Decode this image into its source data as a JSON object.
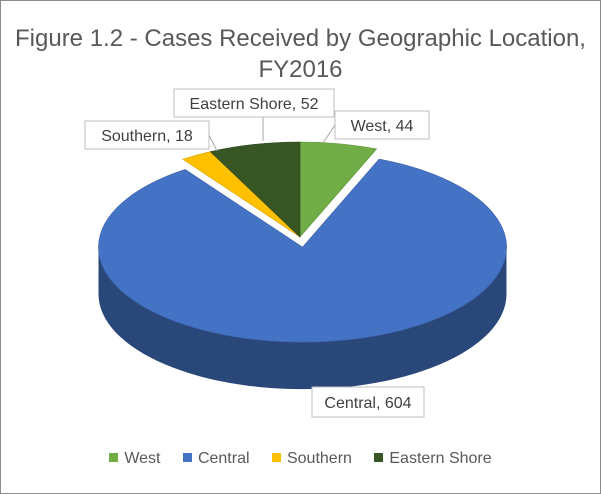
{
  "chart_data": {
    "type": "pie",
    "title": "Figure 1.2 - Cases Received by Geographic Location, FY2016",
    "title_lines": [
      "Figure 1.2 - Cases Received by Geographic Location,",
      "FY2016"
    ],
    "style": "3d",
    "slices": [
      {
        "label": "West",
        "value": 44,
        "color": "#70ad47",
        "data_label": "West, 44"
      },
      {
        "label": "Central",
        "value": 604,
        "color": "#4472c4",
        "data_label": "Central, 604",
        "exploded": true
      },
      {
        "label": "Southern",
        "value": 18,
        "color": "#ffc000",
        "data_label": "Southern, 18"
      },
      {
        "label": "Eastern Shore",
        "value": 52,
        "color": "#375623",
        "data_label": "Eastern Shore, 52"
      }
    ],
    "legend": {
      "position": "bottom",
      "entries": [
        "West",
        "Central",
        "Southern",
        "Eastern Shore"
      ]
    }
  }
}
